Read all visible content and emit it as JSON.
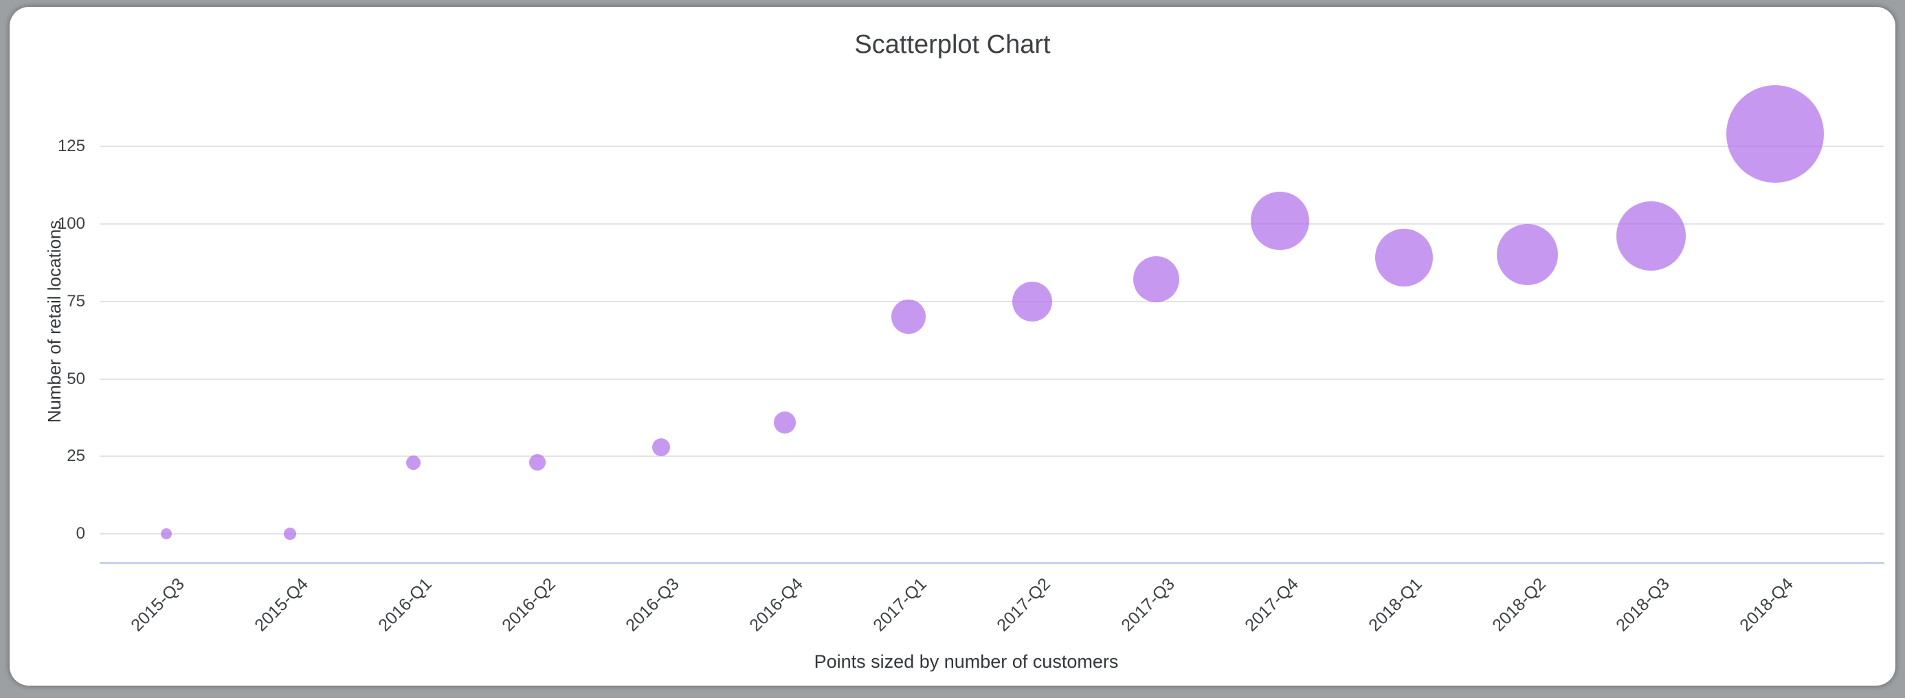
{
  "window": {
    "background_color": "#9da0a3",
    "card_color": "#ffffff"
  },
  "chart_data": {
    "type": "scatter",
    "title": "Scatterplot Chart",
    "xlabel": "",
    "ylabel": "Number of retail locations",
    "caption": "Points sized by number of customers",
    "legend": "none",
    "grid": true,
    "categories": [
      "2015-Q3",
      "2015-Q4",
      "2016-Q1",
      "2016-Q2",
      "2016-Q3",
      "2016-Q4",
      "2017-Q1",
      "2017-Q2",
      "2017-Q3",
      "2017-Q4",
      "2018-Q1",
      "2018-Q2",
      "2018-Q3",
      "2018-Q4"
    ],
    "series": [
      {
        "name": "Number of retail locations",
        "values": [
          0,
          0,
          23,
          23,
          28,
          36,
          70,
          75,
          82,
          101,
          89,
          90,
          96,
          129
        ],
        "point_radius_px": [
          8,
          9,
          10.5,
          12,
          13,
          16,
          25,
          29,
          33.5,
          42.5,
          42,
          44.5,
          50.5,
          71
        ],
        "size_meaning": "number of customers"
      }
    ],
    "yticks": [
      0,
      25,
      50,
      75,
      100,
      125
    ],
    "ylim": [
      0,
      152
    ],
    "point_color": "rgba(178,112,234,0.72)",
    "gridline_color": "#e2e3e5",
    "baseline_color": "#c8d3ee",
    "text_color": "#3c4043"
  }
}
